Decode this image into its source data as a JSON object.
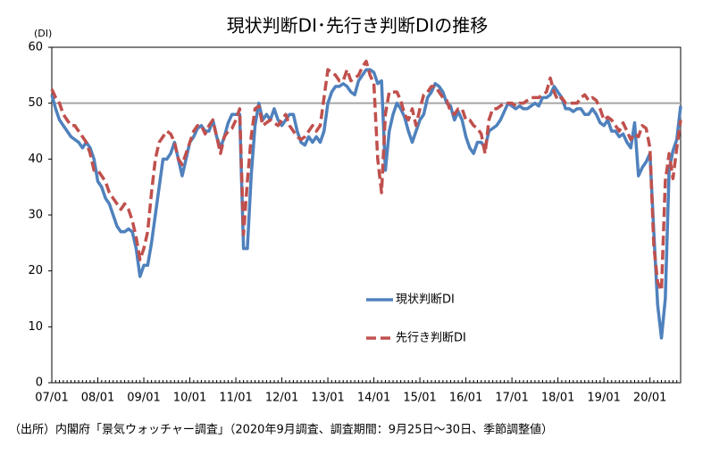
{
  "chart_data": {
    "type": "line",
    "title": "現状判断DI･先行き判断DIの推移",
    "y_unit_label": "(DI)",
    "footnote": "（出所）内閣府「景気ウォッチャー調査」（2020年9月調査、調査期間：9月25日～30日、季節調整値）",
    "categories": [
      "07/01",
      null,
      null,
      null,
      null,
      null,
      null,
      null,
      null,
      null,
      null,
      null,
      "08/01",
      null,
      null,
      null,
      null,
      null,
      null,
      null,
      null,
      null,
      null,
      null,
      "09/01",
      null,
      null,
      null,
      null,
      null,
      null,
      null,
      null,
      null,
      null,
      null,
      "10/01",
      null,
      null,
      null,
      null,
      null,
      null,
      null,
      null,
      null,
      null,
      null,
      "11/01",
      null,
      null,
      null,
      null,
      null,
      null,
      null,
      null,
      null,
      null,
      null,
      "12/01",
      null,
      null,
      null,
      null,
      null,
      null,
      null,
      null,
      null,
      null,
      null,
      "13/01",
      null,
      null,
      null,
      null,
      null,
      null,
      null,
      null,
      null,
      null,
      null,
      "14/01",
      null,
      null,
      null,
      null,
      null,
      null,
      null,
      null,
      null,
      null,
      null,
      "15/01",
      null,
      null,
      null,
      null,
      null,
      null,
      null,
      null,
      null,
      null,
      null,
      "16/01",
      null,
      null,
      null,
      null,
      null,
      null,
      null,
      null,
      null,
      null,
      null,
      "17/01",
      null,
      null,
      null,
      null,
      null,
      null,
      null,
      null,
      null,
      null,
      null,
      "18/01",
      null,
      null,
      null,
      null,
      null,
      null,
      null,
      null,
      null,
      null,
      null,
      "19/01",
      null,
      null,
      null,
      null,
      null,
      null,
      null,
      null,
      null,
      null,
      null,
      "20/01",
      null,
      null,
      null,
      null,
      null,
      null,
      null,
      null
    ],
    "series": [
      {
        "name": "現状判断DI",
        "color": "#4f81bd",
        "dashed": false,
        "values": [
          51.5,
          49,
          47,
          46,
          45,
          44,
          43.5,
          43,
          42,
          43,
          42,
          40,
          36,
          35,
          33,
          32,
          30,
          28,
          27,
          27,
          27.5,
          27,
          24,
          19,
          21,
          21,
          25,
          30,
          35,
          40,
          40,
          41,
          43,
          40,
          37,
          40,
          43,
          44,
          45.5,
          46,
          45,
          45,
          47,
          44,
          42,
          44,
          46.5,
          48,
          48,
          48,
          24,
          24,
          37,
          46,
          50,
          47,
          48,
          47,
          49,
          47,
          46,
          47,
          48,
          48,
          45,
          43,
          42.5,
          44,
          43,
          44,
          43,
          45,
          50,
          52,
          53,
          53,
          53.5,
          53,
          52,
          51.5,
          54,
          55,
          56,
          56,
          55.5,
          53.5,
          54,
          38,
          45,
          48,
          50,
          49,
          47.5,
          45,
          43,
          45,
          47,
          48,
          51,
          52,
          53.5,
          53,
          52,
          50,
          49.5,
          47,
          48.5,
          47,
          44,
          42,
          41,
          43,
          43,
          42,
          45,
          45.5,
          46,
          47,
          48.5,
          50,
          49.5,
          49,
          49.5,
          49,
          49,
          49.5,
          50,
          49.5,
          51,
          51,
          51.5,
          53,
          52,
          51,
          49,
          49,
          48.5,
          49,
          49,
          48,
          48,
          49,
          48,
          46.5,
          46,
          47,
          45,
          45,
          44,
          44.5,
          43,
          42,
          46.5,
          37,
          38.5,
          39.5,
          41,
          27,
          14,
          8,
          15,
          38,
          41.5,
          43.5,
          49.5
        ]
      },
      {
        "name": "先行き判断DI",
        "color": "#c0504d",
        "dashed": true,
        "values": [
          52.5,
          51,
          50,
          48,
          47,
          46,
          46,
          45,
          44,
          43,
          41,
          38,
          38,
          37,
          36,
          34,
          33,
          32,
          31,
          32,
          31,
          29,
          26,
          22,
          24,
          27,
          34,
          40,
          43,
          44,
          45,
          44.5,
          43,
          40,
          39,
          41,
          43,
          45,
          46,
          46,
          44.5,
          46,
          47,
          44,
          41,
          44,
          45,
          45.5,
          47,
          49,
          26.5,
          36,
          44,
          49,
          49.5,
          46,
          46.5,
          47,
          46.5,
          46,
          47,
          48,
          46,
          45,
          44,
          43.5,
          44,
          45,
          46,
          45,
          46,
          51,
          56,
          55.5,
          55,
          54,
          54,
          56,
          54,
          54.5,
          55,
          56.5,
          57.5,
          55,
          53.5,
          40,
          34,
          48,
          52,
          52,
          52,
          50.5,
          48,
          47,
          49,
          46,
          49,
          51.5,
          52,
          53,
          53,
          52,
          51,
          50.5,
          48.5,
          48,
          49,
          49,
          47,
          47,
          46,
          45.5,
          44.5,
          41,
          47,
          49,
          49,
          49.5,
          50,
          50,
          50,
          49.5,
          50,
          50,
          50.5,
          51,
          51,
          51,
          51.5,
          52,
          54.5,
          52,
          50.5,
          51,
          50,
          50,
          50,
          50,
          51,
          51.5,
          50.5,
          51,
          50.5,
          49,
          47,
          47.5,
          47,
          46,
          45,
          46.5,
          45,
          43.5,
          44.5,
          44,
          46,
          45.5,
          42,
          24.5,
          18,
          16.5,
          36,
          41,
          36.5,
          42,
          47
        ]
      }
    ],
    "ylim": [
      0,
      60
    ],
    "yticks": [
      0,
      10,
      20,
      30,
      40,
      50,
      60
    ],
    "reference_line": 50,
    "grid": false
  }
}
